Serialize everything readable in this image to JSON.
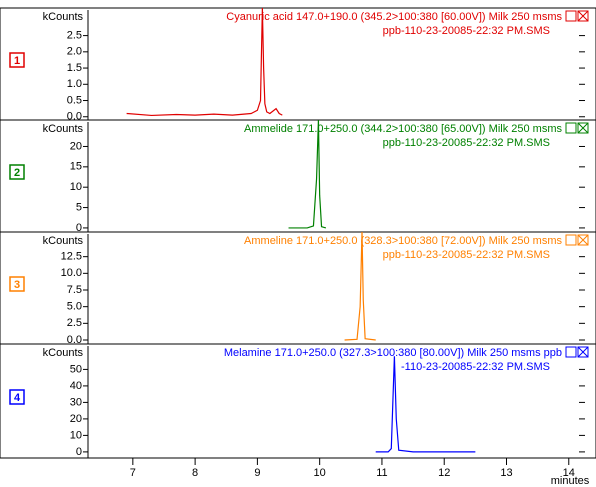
{
  "chart_data": [
    {
      "type": "line",
      "panel_label": "1",
      "ylabel": "kCounts",
      "color": "#e00000",
      "title": [
        "Cyanuric acid 147.0+190.0 (345.2>100:380 [60.00V]) Milk 250 msms",
        "ppb-110-23-20085-22:32 PM.SMS"
      ],
      "xlim": [
        6.28,
        14.1
      ],
      "ylim": [
        -0.1,
        3.35
      ],
      "yticks": [
        {
          "value": 0,
          "label": "0.0"
        },
        {
          "value": 0.5,
          "label": "0.5"
        },
        {
          "value": 1,
          "label": "1.0"
        },
        {
          "value": 1.5,
          "label": "1.5"
        },
        {
          "value": 2,
          "label": "2.0"
        },
        {
          "value": 2.5,
          "label": "2.5"
        }
      ],
      "x": [
        6.9,
        7.3,
        7.7,
        8.0,
        8.3,
        8.6,
        8.9,
        9.0,
        9.05,
        9.08,
        9.1,
        9.12,
        9.15,
        9.2,
        9.3,
        9.35,
        9.4
      ],
      "values": [
        0.1,
        0.04,
        0.07,
        0.05,
        0.08,
        0.05,
        0.1,
        0.2,
        0.5,
        3.35,
        1.5,
        0.4,
        0.15,
        0.1,
        0.25,
        0.1,
        0.05
      ]
    },
    {
      "type": "line",
      "panel_label": "2",
      "ylabel": "kCounts",
      "color": "#008000",
      "title": [
        "Ammelide 171.0+250.0 (344.2>100:380 [65.00V]) Milk 250 msms",
        "ppb-110-23-20085-22:32 PM.SMS"
      ],
      "xlim": [
        6.28,
        14.1
      ],
      "ylim": [
        -1,
        26.5
      ],
      "yticks": [
        0,
        5,
        10,
        15,
        20
      ],
      "x": [
        9.5,
        9.8,
        9.9,
        9.95,
        9.98,
        10.0,
        10.03,
        10.1
      ],
      "values": [
        0,
        0,
        0.5,
        12,
        26.5,
        8,
        0.3,
        0
      ]
    },
    {
      "type": "line",
      "panel_label": "3",
      "ylabel": "kCounts",
      "color": "#ff8000",
      "title": [
        "Ammeline 171.0+250.0 (328.3>100:380 [72.00V]) Milk 250 msms",
        "ppb-110-23-20085-22:32 PM.SMS"
      ],
      "xlim": [
        6.28,
        14.1
      ],
      "ylim": [
        -0.6,
        16.2
      ],
      "yticks": [
        {
          "value": 0,
          "label": "0.0"
        },
        {
          "value": 2.5,
          "label": "2.5"
        },
        {
          "value": 5,
          "label": "5.0"
        },
        {
          "value": 7.5,
          "label": "7.5"
        },
        {
          "value": 10,
          "label": "10.0"
        },
        {
          "value": 12.5,
          "label": "12.5"
        }
      ],
      "x": [
        10.4,
        10.6,
        10.65,
        10.68,
        10.7,
        10.73,
        10.9
      ],
      "values": [
        0,
        0.1,
        5,
        16.2,
        6,
        0.2,
        0
      ]
    },
    {
      "type": "line",
      "panel_label": "4",
      "ylabel": "kCounts",
      "color": "#0000ff",
      "title": [
        "Melamine 171.0+250.0 (327.3>100:380 [80.00V]) Milk 250 msms ppb",
        "-110-23-20085-22:32 PM.SMS"
      ],
      "xlim": [
        6.28,
        14.1
      ],
      "ylim": [
        -3.7,
        65.4
      ],
      "yticks": [
        0,
        10,
        20,
        30,
        40,
        50
      ],
      "x": [
        10.9,
        11.1,
        11.15,
        11.2,
        11.23,
        11.27,
        11.5,
        12.5
      ],
      "values": [
        0,
        0,
        2,
        58,
        20,
        1,
        0,
        0
      ],
      "xticks": [
        7,
        8,
        9,
        10,
        11,
        12,
        13,
        14
      ],
      "xlabel": "minutes"
    }
  ]
}
